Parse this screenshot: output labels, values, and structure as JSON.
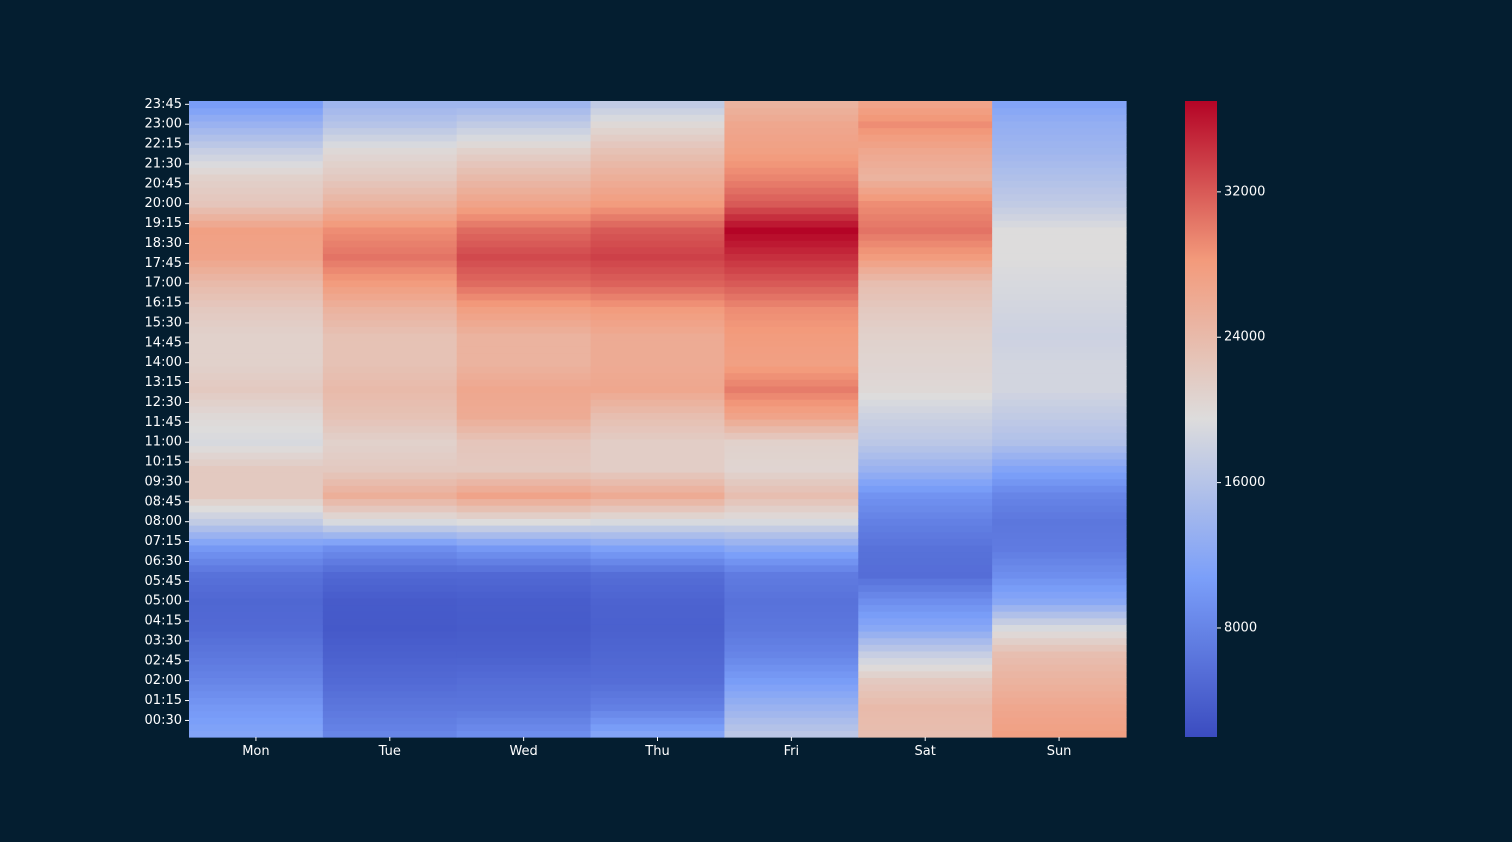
{
  "page": {
    "background": "#041e30",
    "text_color": "#ffffff"
  },
  "chart_data": {
    "type": "heatmap",
    "title": "",
    "xlabel": "",
    "ylabel": "",
    "grid": false,
    "colormap": "coolwarm",
    "color_scale": {
      "min": 2000,
      "max": 37000,
      "ticks": [
        8000,
        16000,
        24000,
        32000
      ],
      "tick_labels": [
        "8000",
        "16000",
        "24000",
        "32000"
      ],
      "stops": [
        {
          "v": 0.0,
          "color": "#3b4cc0"
        },
        {
          "v": 0.25,
          "color": "#7b9ff9"
        },
        {
          "v": 0.5,
          "color": "#dddcdc"
        },
        {
          "v": 0.75,
          "color": "#f39a7b"
        },
        {
          "v": 1.0,
          "color": "#b40426"
        }
      ]
    },
    "x_categories": [
      "Mon",
      "Tue",
      "Wed",
      "Thu",
      "Fri",
      "Sat",
      "Sun"
    ],
    "y_tick_labels": [
      "23:45",
      "23:00",
      "22:15",
      "21:30",
      "20:45",
      "20:00",
      "19:15",
      "18:30",
      "17:45",
      "17:00",
      "16:15",
      "15:30",
      "14:45",
      "14:00",
      "13:15",
      "12:30",
      "11:45",
      "11:00",
      "10:15",
      "09:30",
      "08:45",
      "08:00",
      "07:15",
      "06:30",
      "05:45",
      "05:00",
      "04:15",
      "03:30",
      "02:45",
      "02:00",
      "01:15",
      "00:30"
    ],
    "anchor_times": [
      "00:00",
      "01:00",
      "02:00",
      "03:00",
      "04:00",
      "05:00",
      "06:00",
      "07:00",
      "08:00",
      "09:00",
      "10:00",
      "11:00",
      "12:00",
      "13:00",
      "14:00",
      "15:00",
      "16:00",
      "17:00",
      "18:00",
      "19:00",
      "20:00",
      "21:00",
      "22:00",
      "23:00",
      "23:45"
    ],
    "series": [
      {
        "name": "Mon",
        "values": [
          11500,
          10000,
          8000,
          6500,
          5200,
          4800,
          6000,
          10000,
          17000,
          22000,
          22000,
          19000,
          20000,
          22000,
          21000,
          21000,
          22000,
          24000,
          27000,
          27500,
          22500,
          21000,
          17500,
          13500,
          10500
        ]
      },
      {
        "name": "Tue",
        "values": [
          8000,
          6500,
          5200,
          4200,
          3400,
          3600,
          5000,
          9000,
          19000,
          25500,
          22000,
          21000,
          23000,
          24000,
          23000,
          23000,
          25000,
          28000,
          30500,
          29000,
          25000,
          22000,
          20000,
          16000,
          14000
        ]
      },
      {
        "name": "Wed",
        "values": [
          9000,
          6500,
          5500,
          4200,
          3600,
          3800,
          5000,
          10000,
          19500,
          27000,
          22000,
          22500,
          26000,
          26500,
          25000,
          25000,
          27500,
          31000,
          33000,
          31000,
          27000,
          24000,
          21000,
          17000,
          14000
        ]
      },
      {
        "name": "Thu",
        "values": [
          11500,
          7500,
          5500,
          4800,
          4200,
          4400,
          5600,
          11000,
          19000,
          26000,
          21500,
          21500,
          23500,
          26500,
          26000,
          26000,
          28000,
          31500,
          33500,
          32000,
          28000,
          25500,
          23000,
          20000,
          17000
        ]
      },
      {
        "name": "Fri",
        "values": [
          16500,
          13500,
          10500,
          8000,
          6500,
          6000,
          7000,
          12000,
          19000,
          23500,
          20500,
          21000,
          27000,
          30000,
          27500,
          28000,
          29000,
          32000,
          34500,
          37000,
          32000,
          29500,
          27500,
          26500,
          25000
        ]
      },
      {
        "name": "Sat",
        "values": [
          23500,
          24000,
          22000,
          17500,
          12000,
          9000,
          5500,
          6000,
          7500,
          9500,
          13500,
          16500,
          18000,
          20000,
          20500,
          21000,
          22000,
          23500,
          28000,
          30500,
          29000,
          25000,
          26500,
          29000,
          27000
        ]
      },
      {
        "name": "Sun",
        "values": [
          27500,
          26500,
          25000,
          23500,
          19000,
          12000,
          9000,
          7000,
          6500,
          8000,
          11500,
          15500,
          17000,
          18500,
          18500,
          18000,
          18500,
          19000,
          19500,
          19500,
          17000,
          15500,
          14000,
          13000,
          11500
        ]
      }
    ]
  }
}
